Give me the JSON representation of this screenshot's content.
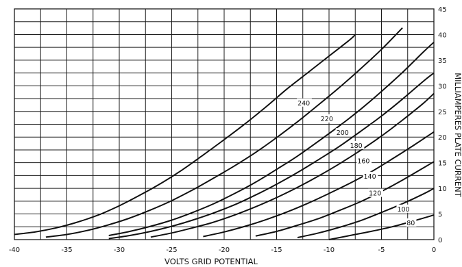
{
  "chart_data": {
    "type": "line",
    "title": "",
    "xlabel": "VOLTS GRID POTENTIAL",
    "ylabel": "MILLIAMPERES PLATE CURRENT",
    "xlim": [
      -40,
      0
    ],
    "ylim": [
      0,
      45
    ],
    "x_ticks": [
      -40,
      -35,
      -30,
      -25,
      -20,
      -15,
      -10,
      -5,
      0
    ],
    "y_ticks": [
      0,
      5,
      10,
      15,
      20,
      25,
      30,
      35,
      40,
      45
    ],
    "x_grid_step": 2.5,
    "y_grid_step": 2.5,
    "grid": true,
    "y_axis_side": "right",
    "series": [
      {
        "name": "240",
        "x": [
          -40.0,
          -38.0,
          -36.0,
          -34.0,
          -32.0,
          -30.0,
          -28.0,
          -26.0,
          -24.0,
          -22.0,
          -20.0,
          -18.0,
          -16.0,
          -14.0,
          -12.0,
          -10.0,
          -8.0,
          -7.5
        ],
        "y": [
          1.0,
          1.5,
          2.3,
          3.4,
          4.8,
          6.6,
          8.7,
          11.0,
          13.6,
          16.5,
          19.5,
          22.6,
          25.9,
          29.4,
          32.6,
          35.8,
          39.0,
          40.0
        ]
      },
      {
        "name": "220",
        "x": [
          -37.0,
          -35.0,
          -33.0,
          -31.0,
          -29.0,
          -27.0,
          -25.0,
          -23.0,
          -21.0,
          -19.0,
          -17.0,
          -15.0,
          -13.0,
          -11.0,
          -9.0,
          -7.0,
          -5.0,
          -3.0
        ],
        "y": [
          0.5,
          1.0,
          1.8,
          2.9,
          4.2,
          5.8,
          7.6,
          9.7,
          12.0,
          14.4,
          17.0,
          19.9,
          23.0,
          26.3,
          29.7,
          33.3,
          37.1,
          41.3
        ]
      },
      {
        "name": "200",
        "x": [
          -31.0,
          -29.0,
          -27.0,
          -25.0,
          -23.0,
          -21.0,
          -19.0,
          -17.0,
          -15.0,
          -13.0,
          -11.0,
          -9.0,
          -7.0,
          -5.0,
          -3.0,
          -1.0,
          0.0
        ],
        "y": [
          0.8,
          1.6,
          2.6,
          3.8,
          5.3,
          7.0,
          9.0,
          11.2,
          13.7,
          16.3,
          19.2,
          22.2,
          25.4,
          28.9,
          32.6,
          36.6,
          38.5
        ]
      },
      {
        "name": "180",
        "x": [
          -31.0,
          -29.0,
          -27.0,
          -25.0,
          -23.0,
          -21.0,
          -19.0,
          -17.0,
          -15.0,
          -13.0,
          -11.0,
          -9.0,
          -7.0,
          -5.0,
          -3.0,
          -1.0,
          0.0
        ],
        "y": [
          0.2,
          0.8,
          1.6,
          2.6,
          3.8,
          5.2,
          6.8,
          8.7,
          10.8,
          13.1,
          15.6,
          18.2,
          21.1,
          24.1,
          27.4,
          30.9,
          32.5
        ]
      },
      {
        "name": "160",
        "x": [
          -27.0,
          -25.0,
          -23.0,
          -21.0,
          -19.0,
          -17.0,
          -15.0,
          -13.0,
          -11.0,
          -9.0,
          -7.0,
          -5.0,
          -3.0,
          -1.0,
          0.0
        ],
        "y": [
          0.5,
          1.3,
          2.3,
          3.4,
          4.8,
          6.4,
          8.2,
          10.2,
          12.4,
          14.8,
          17.4,
          20.2,
          23.3,
          26.6,
          28.5
        ]
      },
      {
        "name": "140",
        "x": [
          -22.0,
          -20.0,
          -18.0,
          -16.0,
          -14.0,
          -12.0,
          -10.0,
          -8.0,
          -6.0,
          -4.0,
          -2.0,
          0.0
        ],
        "y": [
          0.6,
          1.5,
          2.6,
          3.9,
          5.4,
          7.1,
          9.0,
          11.0,
          13.2,
          15.7,
          18.3,
          21.0
        ]
      },
      {
        "name": "120",
        "x": [
          -17.0,
          -15.0,
          -13.0,
          -11.0,
          -9.0,
          -7.0,
          -5.0,
          -3.0,
          -1.0,
          0.0
        ],
        "y": [
          0.7,
          1.6,
          2.8,
          4.1,
          5.7,
          7.4,
          9.4,
          11.6,
          14.0,
          15.2
        ]
      },
      {
        "name": "100",
        "x": [
          -13.0,
          -11.0,
          -9.0,
          -7.0,
          -5.0,
          -3.0,
          -1.0,
          0.0
        ],
        "y": [
          0.4,
          1.3,
          2.4,
          3.7,
          5.3,
          7.0,
          8.9,
          10.0
        ]
      },
      {
        "name": "80",
        "x": [
          -10.0,
          -8.0,
          -6.0,
          -4.0,
          -2.0,
          0.0
        ],
        "y": [
          0.0,
          0.8,
          1.6,
          2.5,
          3.6,
          4.8
        ]
      }
    ],
    "curve_labels": [
      {
        "text": "240",
        "x": -13.0,
        "y": 26.2
      },
      {
        "text": "220",
        "x": -10.8,
        "y": 23.1
      },
      {
        "text": "200",
        "x": -9.3,
        "y": 20.4
      },
      {
        "text": "180",
        "x": -8.0,
        "y": 17.9
      },
      {
        "text": "160",
        "x": -7.3,
        "y": 14.9
      },
      {
        "text": "140",
        "x": -6.7,
        "y": 11.9
      },
      {
        "text": "120",
        "x": -6.2,
        "y": 8.6
      },
      {
        "text": "100",
        "x": -3.5,
        "y": 5.5
      },
      {
        "text": "80",
        "x": -2.6,
        "y": 2.8
      }
    ]
  }
}
